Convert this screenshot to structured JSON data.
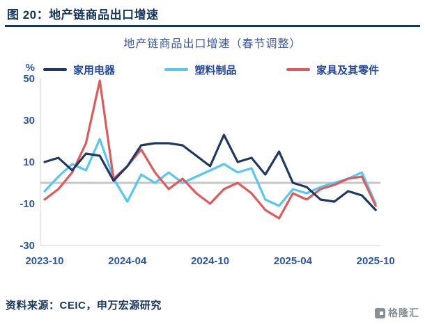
{
  "header": {
    "title": "图 20：地产链商品出口增速"
  },
  "chart_data": {
    "type": "line",
    "title": "地产链商品出口增速（春节调整）",
    "ylabel": "%",
    "ylim": [
      -30,
      50
    ],
    "yticks": [
      50,
      30,
      10,
      -10,
      -30
    ],
    "zero_line": true,
    "legend_position": "top",
    "axis_text_color": "#2B55A8",
    "grid_color": "#C7C7C7",
    "x": [
      "2023-10",
      "2023-11",
      "2023-12",
      "2024-01",
      "2024-02",
      "2024-03",
      "2024-04",
      "2024-05",
      "2024-06",
      "2024-07",
      "2024-08",
      "2024-09",
      "2024-10",
      "2024-11",
      "2024-12",
      "2025-01",
      "2025-02",
      "2025-03",
      "2025-04",
      "2025-05",
      "2025-06",
      "2025-07",
      "2025-08",
      "2025-09",
      "2025-10"
    ],
    "x_tick_indices": [
      0,
      6,
      12,
      18,
      24
    ],
    "x_tick_labels": [
      "2023-10",
      "2024-04",
      "2024-10",
      "2025-04",
      "2025-10"
    ],
    "series": [
      {
        "name": "家用电器",
        "color": "#1F3864",
        "values": [
          10,
          12,
          6,
          14,
          13,
          1,
          8,
          18,
          19,
          19,
          18,
          13,
          8,
          23,
          10,
          12,
          4,
          15,
          0,
          -2,
          -8,
          -9,
          -4,
          -6,
          -13
        ]
      },
      {
        "name": "塑料制品",
        "color": "#55C8F0",
        "values": [
          -4,
          3,
          9,
          6,
          21,
          2,
          -9,
          4,
          0,
          5,
          0,
          3,
          6,
          9,
          5,
          7,
          -8,
          -11,
          -3,
          -5,
          -2,
          0,
          2,
          5,
          -10
        ]
      },
      {
        "name": "家具及其零件",
        "color": "#E05A5A",
        "values": [
          -8,
          -3,
          5,
          19,
          49,
          2,
          8,
          16,
          5,
          -3,
          2,
          -5,
          -10,
          -3,
          0,
          -5,
          -13,
          -17,
          -5,
          -8,
          -3,
          -1,
          2,
          3,
          -11
        ]
      }
    ]
  },
  "footer": {
    "source": "资料来源：CEIC，申万宏源研究",
    "logo_text": "格隆汇"
  }
}
